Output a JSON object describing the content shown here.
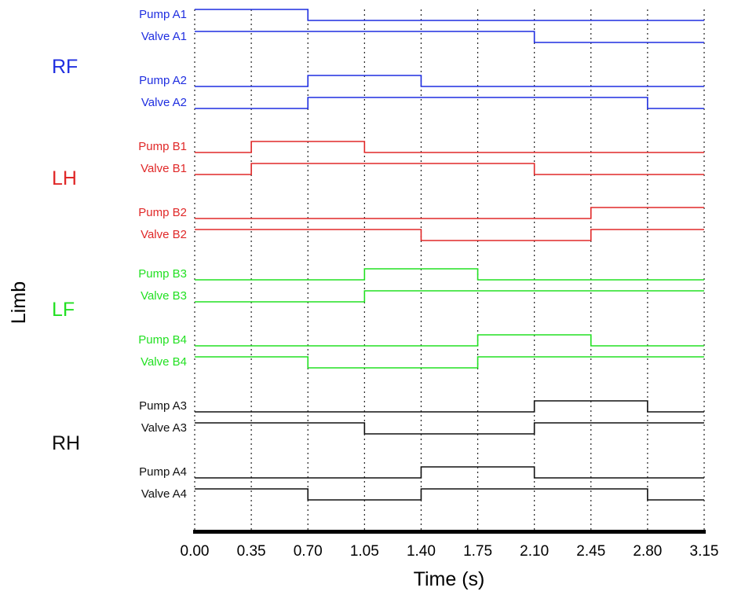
{
  "chart_data": {
    "type": "line",
    "subtype": "timing-diagram",
    "xlabel": "Time (s)",
    "ylabel": "Limb",
    "xlim": [
      0,
      3.15
    ],
    "xticks": [
      "0.00",
      "0.35",
      "0.70",
      "1.05",
      "1.40",
      "1.75",
      "2.10",
      "2.45",
      "2.80",
      "3.15"
    ],
    "grid": "vertical-dotted",
    "groups": [
      {
        "name": "RF",
        "color": "#1f2ee0"
      },
      {
        "name": "LH",
        "color": "#e02828"
      },
      {
        "name": "LF",
        "color": "#22e022"
      },
      {
        "name": "RH",
        "color": "#111111"
      }
    ],
    "series": [
      {
        "name": "Pump A1",
        "group": "RF",
        "steps": [
          [
            0,
            1
          ],
          [
            0.7,
            0
          ]
        ]
      },
      {
        "name": "Valve A1",
        "group": "RF",
        "steps": [
          [
            0,
            1
          ],
          [
            2.1,
            0
          ]
        ]
      },
      {
        "name": "Pump A2",
        "group": "RF",
        "steps": [
          [
            0,
            0
          ],
          [
            0.7,
            1
          ],
          [
            1.4,
            0
          ]
        ]
      },
      {
        "name": "Valve A2",
        "group": "RF",
        "steps": [
          [
            0,
            0
          ],
          [
            0.7,
            1
          ],
          [
            2.8,
            0
          ]
        ]
      },
      {
        "name": "Pump B1",
        "group": "LH",
        "steps": [
          [
            0,
            0
          ],
          [
            0.35,
            1
          ],
          [
            1.05,
            0
          ]
        ]
      },
      {
        "name": "Valve B1",
        "group": "LH",
        "steps": [
          [
            0,
            0
          ],
          [
            0.35,
            1
          ],
          [
            2.1,
            0
          ]
        ]
      },
      {
        "name": "Pump B2",
        "group": "LH",
        "steps": [
          [
            0,
            0
          ],
          [
            2.45,
            1
          ]
        ]
      },
      {
        "name": "Valve B2",
        "group": "LH",
        "steps": [
          [
            0,
            1
          ],
          [
            1.4,
            0
          ],
          [
            2.45,
            1
          ]
        ]
      },
      {
        "name": "Pump B3",
        "group": "LF",
        "steps": [
          [
            0,
            0
          ],
          [
            1.05,
            1
          ],
          [
            1.75,
            0
          ]
        ]
      },
      {
        "name": "Valve B3",
        "group": "LF",
        "steps": [
          [
            0,
            0
          ],
          [
            1.05,
            1
          ]
        ]
      },
      {
        "name": "Pump B4",
        "group": "LF",
        "steps": [
          [
            0,
            0
          ],
          [
            1.75,
            1
          ],
          [
            2.45,
            0
          ]
        ]
      },
      {
        "name": "Valve B4",
        "group": "LF",
        "steps": [
          [
            0,
            1
          ],
          [
            0.7,
            0
          ],
          [
            1.75,
            1
          ]
        ]
      },
      {
        "name": "Pump A3",
        "group": "RH",
        "steps": [
          [
            0,
            0
          ],
          [
            2.1,
            1
          ],
          [
            2.8,
            0
          ]
        ]
      },
      {
        "name": "Valve A3",
        "group": "RH",
        "steps": [
          [
            0,
            1
          ],
          [
            1.05,
            0
          ],
          [
            2.1,
            1
          ]
        ]
      },
      {
        "name": "Pump A4",
        "group": "RH",
        "steps": [
          [
            0,
            0
          ],
          [
            1.4,
            1
          ],
          [
            2.1,
            0
          ]
        ]
      },
      {
        "name": "Valve A4",
        "group": "RH",
        "steps": [
          [
            0,
            1
          ],
          [
            0.7,
            0
          ],
          [
            1.4,
            1
          ],
          [
            2.8,
            0
          ]
        ]
      }
    ]
  }
}
